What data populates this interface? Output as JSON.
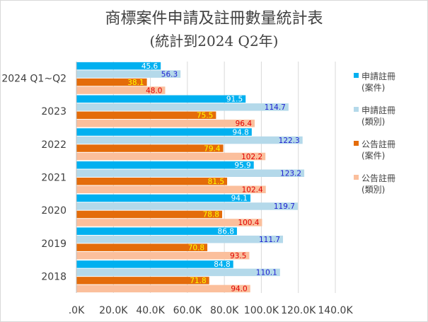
{
  "chart_data": {
    "type": "bar",
    "orientation": "horizontal",
    "title": "商標案件申請及註冊數量統計表",
    "subtitle": "(統計到2024 Q2年)",
    "categories": [
      "2024 Q1~Q2",
      "2023",
      "2022",
      "2021",
      "2020",
      "2019",
      "2018"
    ],
    "series": [
      {
        "name": "申請註冊\n(案件)",
        "name_lines": [
          "申請註冊",
          "(案件)"
        ],
        "color": "#00b0f0",
        "label_color": "#ffffff",
        "values": [
          45.6,
          91.5,
          94.8,
          95.9,
          94.1,
          86.8,
          84.8
        ]
      },
      {
        "name": "申請註冊\n(類別)",
        "name_lines": [
          "申請註冊",
          "(類別)"
        ],
        "color": "#b4d9ea",
        "label_color": "#1f1fd0",
        "values": [
          56.3,
          114.7,
          122.3,
          123.2,
          119.7,
          111.7,
          110.1
        ]
      },
      {
        "name": "公告註冊\n(案件)",
        "name_lines": [
          "公告註冊",
          "(案件)"
        ],
        "color": "#e46c0a",
        "label_color": "#ffff00",
        "values": [
          38.1,
          75.5,
          79.4,
          81.5,
          78.8,
          70.8,
          71.8
        ]
      },
      {
        "name": "公告註冊\n(類別)",
        "name_lines": [
          "公告註冊",
          "(類別)"
        ],
        "color": "#fbbf9c",
        "label_color": "#e00000",
        "values": [
          48.0,
          96.4,
          102.2,
          102.4,
          100.4,
          93.5,
          94.0
        ]
      }
    ],
    "xlim": [
      0,
      140
    ],
    "x_ticks": [
      0,
      20,
      40,
      60,
      80,
      100,
      120,
      140
    ],
    "x_tick_labels": [
      ".0K",
      "20.0K",
      "40.0K",
      "60.0K",
      "80.0K",
      "100.0K",
      "120.0K",
      "140.0K"
    ],
    "gridlines": true,
    "legend_position": "right"
  }
}
